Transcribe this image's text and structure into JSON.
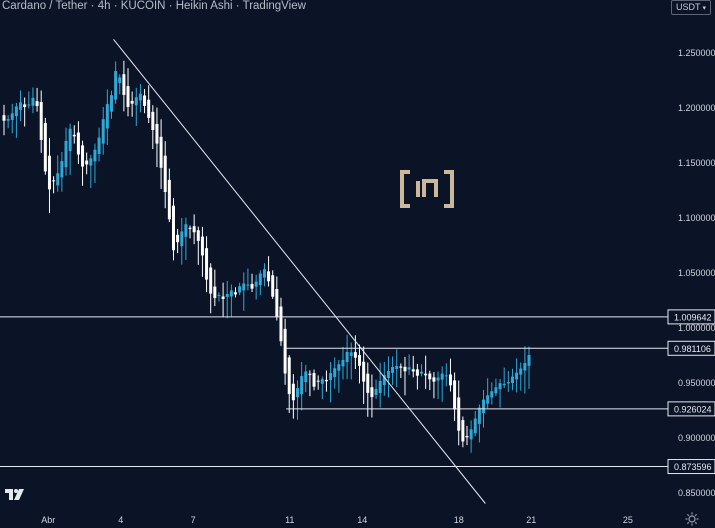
{
  "header": {
    "pair": "Cardano / Tether",
    "interval": "4h",
    "exchange": "KUCOIN",
    "chart_style": "Heikin Ashi",
    "brand": "TradingView"
  },
  "currency_selector": {
    "label": "USDT"
  },
  "colors": {
    "background": "#0b1327",
    "bull": "#2ea8d6",
    "bear": "#ffffff",
    "axis_text": "#d0d4dc",
    "line": "#e6e8ee",
    "logo": "#cbb89a"
  },
  "icons": {
    "tradingview": "tradingview-logo",
    "settings": "settings-gear-icon",
    "watermark": "beincrypto-logo-watermark"
  },
  "chart_data": {
    "type": "candlestick",
    "ylim": [
      0.835,
      1.285
    ],
    "xlim": [
      0,
      27.58
    ],
    "y_ticks": [
      {
        "value": 1.25,
        "label": "1.250000"
      },
      {
        "value": 1.2,
        "label": "1.200000"
      },
      {
        "value": 1.15,
        "label": "1.150000"
      },
      {
        "value": 1.1,
        "label": "1.100000"
      },
      {
        "value": 1.05,
        "label": "1.050000"
      },
      {
        "value": 1.0,
        "label": "1.000000"
      },
      {
        "value": 0.95,
        "label": "0.950000"
      },
      {
        "value": 0.9,
        "label": "0.900000"
      },
      {
        "value": 0.85,
        "label": "0.850000"
      }
    ],
    "x_ticks": [
      {
        "value": 2,
        "label": "Abr"
      },
      {
        "value": 5,
        "label": "4"
      },
      {
        "value": 8,
        "label": "7"
      },
      {
        "value": 12,
        "label": "11"
      },
      {
        "value": 15,
        "label": "14"
      },
      {
        "value": 19,
        "label": "18"
      },
      {
        "value": 22,
        "label": "21"
      },
      {
        "value": 26,
        "label": "25"
      }
    ],
    "horizontal_levels": [
      {
        "value": 1.009642,
        "label": "1.009642",
        "from": 0
      },
      {
        "value": 0.981106,
        "label": "0.981106",
        "from": 11.85
      },
      {
        "value": 0.926024,
        "label": "0.926024",
        "from": 11.85
      },
      {
        "value": 0.873596,
        "label": "0.873596",
        "from": 0
      }
    ],
    "trendline": {
      "from": [
        4.7,
        1.262
      ],
      "to": [
        20.1,
        0.84
      ]
    },
    "candle_keys": [
      [
        1.188,
        15
      ],
      [
        1.19,
        16
      ],
      [
        1.2,
        12
      ],
      [
        1.205,
        10
      ],
      [
        1.198,
        -8
      ],
      [
        1.21,
        14
      ],
      [
        1.2,
        -15
      ],
      [
        1.15,
        -50
      ],
      [
        1.125,
        -25
      ],
      [
        1.135,
        12
      ],
      [
        1.145,
        10
      ],
      [
        1.17,
        25
      ],
      [
        1.185,
        15
      ],
      [
        1.16,
        -25
      ],
      [
        1.145,
        -15
      ],
      [
        1.15,
        5
      ],
      [
        1.16,
        10
      ],
      [
        1.175,
        15
      ],
      [
        1.2,
        25
      ],
      [
        1.21,
        10
      ],
      [
        1.24,
        30
      ],
      [
        1.215,
        -25
      ],
      [
        1.2,
        -15
      ],
      [
        1.205,
        5
      ],
      [
        1.215,
        10
      ],
      [
        1.2,
        -15
      ],
      [
        1.185,
        -15
      ],
      [
        1.17,
        -15
      ],
      [
        1.14,
        -30
      ],
      [
        1.11,
        -30
      ],
      [
        1.07,
        -40
      ],
      [
        1.08,
        10
      ],
      [
        1.095,
        15
      ],
      [
        1.09,
        -5
      ],
      [
        1.085,
        -5
      ],
      [
        1.07,
        -15
      ],
      [
        1.04,
        -30
      ],
      [
        1.025,
        -15
      ],
      [
        1.03,
        5
      ],
      [
        1.025,
        -5
      ],
      [
        1.035,
        10
      ],
      [
        1.03,
        -5
      ],
      [
        1.04,
        10
      ],
      [
        1.04,
        0
      ],
      [
        1.035,
        -5
      ],
      [
        1.045,
        10
      ],
      [
        1.055,
        10
      ],
      [
        1.04,
        -15
      ],
      [
        1.02,
        -20
      ],
      [
        0.99,
        -30
      ],
      [
        0.95,
        -40
      ],
      [
        0.93,
        -20
      ],
      [
        0.945,
        15
      ],
      [
        0.96,
        15
      ],
      [
        0.96,
        0
      ],
      [
        0.945,
        -15
      ],
      [
        0.955,
        10
      ],
      [
        0.95,
        -5
      ],
      [
        0.96,
        10
      ],
      [
        0.965,
        5
      ],
      [
        0.97,
        5
      ],
      [
        0.98,
        10
      ],
      [
        0.975,
        -5
      ],
      [
        0.965,
        -10
      ],
      [
        0.945,
        -20
      ],
      [
        0.935,
        -10
      ],
      [
        0.945,
        10
      ],
      [
        0.955,
        10
      ],
      [
        0.96,
        5
      ],
      [
        0.965,
        5
      ],
      [
        0.965,
        0
      ],
      [
        0.96,
        -5
      ],
      [
        0.965,
        5
      ],
      [
        0.955,
        -10
      ],
      [
        0.96,
        5
      ],
      [
        0.955,
        -5
      ],
      [
        0.95,
        -5
      ],
      [
        0.955,
        5
      ],
      [
        0.96,
        5
      ],
      [
        0.95,
        -10
      ],
      [
        0.92,
        -30
      ],
      [
        0.895,
        -25
      ],
      [
        0.9,
        5
      ],
      [
        0.91,
        10
      ],
      [
        0.925,
        15
      ],
      [
        0.935,
        10
      ],
      [
        0.94,
        5
      ],
      [
        0.945,
        5
      ],
      [
        0.95,
        5
      ],
      [
        0.948,
        -2
      ],
      [
        0.955,
        7
      ],
      [
        0.96,
        5
      ],
      [
        0.965,
        5
      ],
      [
        0.975,
        10
      ]
    ]
  }
}
